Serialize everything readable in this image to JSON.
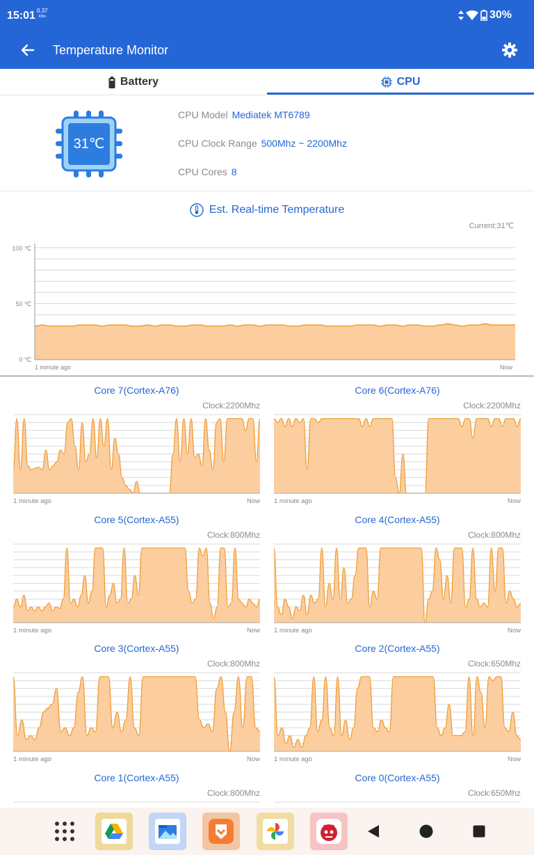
{
  "status_bar": {
    "time": "15:01",
    "speed_value": "0.37",
    "speed_unit": "KB/s",
    "battery": "30%"
  },
  "app_bar": {
    "title": "Temperature Monitor"
  },
  "tabs": [
    {
      "label": "Battery"
    },
    {
      "label": "CPU"
    }
  ],
  "cpu": {
    "temp": "31℃",
    "model_label": "CPU Model",
    "model_value": "Mediatek MT6789",
    "clock_label": "CPU Clock Range",
    "clock_value": "500Mhz ~ 2200Mhz",
    "cores_label": "CPU Cores",
    "cores_value": "8"
  },
  "realtime": {
    "title": "Est. Real-time Temperature",
    "current": "Current:31℃",
    "y_ticks": [
      "100 ℃",
      "50 ℃",
      "0 ℃"
    ],
    "x_start": "1 minute ago",
    "x_end": "Now"
  },
  "chart_data": [
    {
      "type": "area",
      "title": "Est. Real-time Temperature",
      "ylim": [
        0,
        100
      ],
      "y_unit": "℃",
      "values": [
        30,
        31,
        30,
        30,
        30,
        30,
        31,
        31,
        31,
        30,
        31,
        31,
        31,
        30,
        30,
        31,
        30,
        31,
        31,
        30,
        30,
        31,
        31,
        30,
        30,
        30,
        31,
        30,
        31,
        31,
        30,
        31,
        31,
        31,
        30,
        30,
        31,
        31,
        31,
        30,
        30,
        30,
        30,
        31,
        31,
        31,
        30,
        31,
        31,
        30,
        31,
        31,
        30,
        30,
        31,
        32,
        31,
        30,
        31,
        31,
        32,
        31,
        31,
        31,
        31
      ],
      "color": "#f2a24a"
    },
    {
      "type": "area",
      "title": "Core 7(Cortex-A76)",
      "clock": "Clock:2200Mhz",
      "ylim": [
        0,
        100
      ],
      "values": [
        30,
        95,
        30,
        95,
        35,
        30,
        32,
        33,
        30,
        55,
        30,
        35,
        40,
        55,
        50,
        90,
        95,
        60,
        30,
        90,
        40,
        50,
        95,
        45,
        95,
        60,
        95,
        30,
        70,
        50,
        20,
        10,
        5,
        0,
        15,
        0,
        0,
        0,
        0,
        0,
        0,
        0,
        0,
        0,
        50,
        95,
        40,
        95,
        50,
        95,
        45,
        50,
        35,
        95,
        55,
        30,
        90,
        95,
        40,
        95,
        95,
        95,
        95,
        95,
        80,
        95,
        95,
        40,
        95
      ]
    },
    {
      "type": "area",
      "title": "Core 6(Cortex-A76)",
      "clock": "Clock:2200Mhz",
      "ylim": [
        0,
        100
      ],
      "values": [
        95,
        90,
        95,
        85,
        95,
        85,
        95,
        90,
        95,
        30,
        95,
        95,
        90,
        95,
        95,
        95,
        95,
        95,
        95,
        95,
        95,
        95,
        95,
        95,
        85,
        95,
        85,
        95,
        95,
        95,
        95,
        95,
        95,
        20,
        0,
        50,
        0,
        0,
        0,
        0,
        0,
        0,
        95,
        95,
        95,
        95,
        95,
        95,
        95,
        95,
        95,
        85,
        95,
        95,
        70,
        95,
        95,
        95,
        95,
        85,
        95,
        95,
        85,
        95,
        95,
        95,
        85,
        95
      ]
    },
    {
      "type": "area",
      "title": "Core 5(Cortex-A55)",
      "clock": "Clock:800Mhz",
      "ylim": [
        0,
        100
      ],
      "values": [
        20,
        30,
        20,
        35,
        15,
        20,
        15,
        20,
        15,
        20,
        25,
        15,
        20,
        18,
        30,
        95,
        25,
        30,
        20,
        35,
        60,
        25,
        40,
        95,
        95,
        95,
        20,
        35,
        50,
        25,
        30,
        95,
        25,
        30,
        60,
        35,
        95,
        95,
        95,
        95,
        95,
        95,
        95,
        95,
        95,
        95,
        95,
        95,
        95,
        40,
        25,
        30,
        95,
        85,
        95,
        25,
        5,
        20,
        95,
        95,
        20,
        25,
        95,
        30,
        25,
        20,
        30,
        25,
        20,
        30
      ]
    },
    {
      "type": "area",
      "title": "Core 4(Cortex-A55)",
      "clock": "Clock:800Mhz",
      "ylim": [
        0,
        100
      ],
      "values": [
        95,
        20,
        10,
        30,
        20,
        5,
        20,
        15,
        35,
        10,
        35,
        25,
        30,
        95,
        20,
        50,
        30,
        95,
        30,
        70,
        25,
        30,
        60,
        95,
        95,
        95,
        20,
        40,
        30,
        95,
        95,
        95,
        95,
        95,
        95,
        95,
        95,
        95,
        95,
        95,
        95,
        0,
        30,
        40,
        95,
        80,
        30,
        60,
        25,
        95,
        95,
        95,
        20,
        30,
        95,
        30,
        20,
        25,
        20,
        95,
        40,
        95,
        95,
        25,
        40,
        30,
        20,
        25
      ]
    },
    {
      "type": "area",
      "title": "Core 3(Cortex-A55)",
      "clock": "Clock:800Mhz",
      "ylim": [
        0,
        100
      ],
      "values": [
        95,
        20,
        40,
        15,
        20,
        15,
        30,
        50,
        55,
        60,
        80,
        25,
        30,
        20,
        30,
        75,
        95,
        20,
        30,
        25,
        95,
        95,
        95,
        30,
        50,
        25,
        40,
        95,
        30,
        20,
        95,
        95,
        95,
        95,
        95,
        95,
        95,
        95,
        95,
        95,
        95,
        95,
        95,
        40,
        30,
        35,
        25,
        80,
        95,
        50,
        0,
        50,
        95,
        30,
        95,
        95,
        30,
        25
      ]
    },
    {
      "type": "area",
      "title": "Core 2(Cortex-A55)",
      "clock": "Clock:650Mhz",
      "ylim": [
        0,
        100
      ],
      "values": [
        95,
        20,
        30,
        10,
        20,
        5,
        15,
        5,
        20,
        30,
        95,
        25,
        40,
        95,
        30,
        20,
        95,
        20,
        40,
        15,
        30,
        80,
        95,
        95,
        95,
        30,
        25,
        40,
        30,
        25,
        95,
        95,
        95,
        95,
        95,
        95,
        95,
        95,
        95,
        95,
        95,
        30,
        20,
        30,
        60,
        20,
        20,
        20,
        25,
        95,
        20,
        95,
        75,
        30,
        95,
        90,
        95,
        95,
        30,
        25,
        50,
        20,
        15
      ]
    },
    {
      "type": "area",
      "title": "Core 1(Cortex-A55)",
      "clock": "Clock:800Mhz",
      "ylim": [
        0,
        100
      ],
      "values": []
    },
    {
      "type": "area",
      "title": "Core 0(Cortex-A55)",
      "clock": "Clock:650Mhz",
      "ylim": [
        0,
        100
      ],
      "values": []
    }
  ],
  "nav": {
    "apps": [
      "app-grid-icon",
      "drive-icon",
      "files-icon",
      "launcher-icon",
      "photos-icon",
      "antutu-icon"
    ],
    "buttons": [
      "back-triangle-icon",
      "home-circle-icon",
      "recents-square-icon"
    ]
  },
  "colors": {
    "primary": "#2566d6",
    "fill": "#fbcd9f",
    "stroke": "#ef9a2e"
  }
}
